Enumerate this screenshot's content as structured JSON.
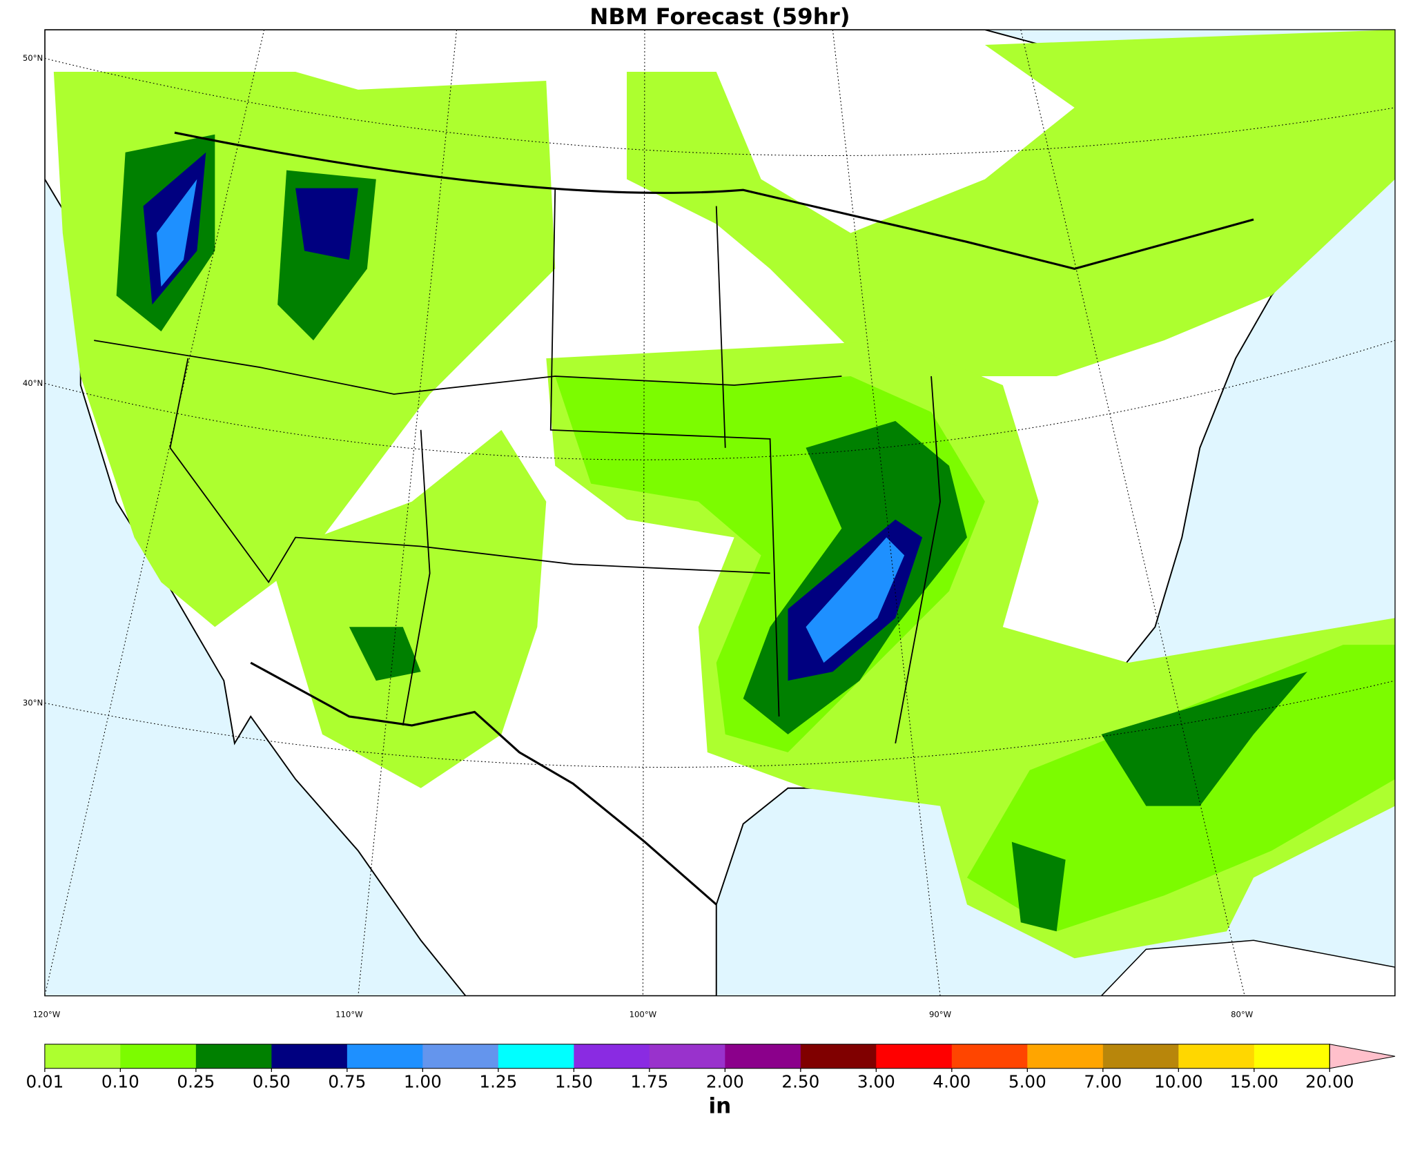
{
  "title": "NBM Forecast (59hr)",
  "map": {
    "lat_labels": [
      "50°N",
      "40°N",
      "30°N"
    ],
    "lon_labels": [
      "120°W",
      "110°W",
      "100°W",
      "90°W",
      "80°W"
    ]
  },
  "colorbar": {
    "label": "in",
    "colors": [
      "#adff2f",
      "#7cfc00",
      "#008000",
      "#000080",
      "#1e90ff",
      "#6495ed",
      "#00ffff",
      "#8a2be2",
      "#9932cc",
      "#8b008b",
      "#800000",
      "#ff0000",
      "#ff4500",
      "#ffa500",
      "#b8860b",
      "#ffd700",
      "#ffff00"
    ],
    "extend_color": "#ffc0cb",
    "ticks": [
      {
        "value": 0.01,
        "label": "0.01"
      },
      {
        "value": 0.1,
        "label": "0.10"
      },
      {
        "value": 0.25,
        "label": "0.25"
      },
      {
        "value": 0.5,
        "label": "0.50"
      },
      {
        "value": 0.75,
        "label": "0.75"
      },
      {
        "value": 1,
        "label": "1.00"
      },
      {
        "value": 1.25,
        "label": "1.25"
      },
      {
        "value": 1.5,
        "label": "1.50"
      },
      {
        "value": 1.75,
        "label": "1.75"
      },
      {
        "value": 2,
        "label": "2.00"
      },
      {
        "value": 2.5,
        "label": "2.50"
      },
      {
        "value": 3,
        "label": "3.00"
      },
      {
        "value": 4,
        "label": "4.00"
      },
      {
        "value": 5,
        "label": "5.00"
      },
      {
        "value": 7,
        "label": "7.00"
      },
      {
        "value": 10,
        "label": "10.00"
      },
      {
        "value": 15,
        "label": "15.00"
      },
      {
        "value": 20,
        "label": "20.00"
      }
    ]
  }
}
